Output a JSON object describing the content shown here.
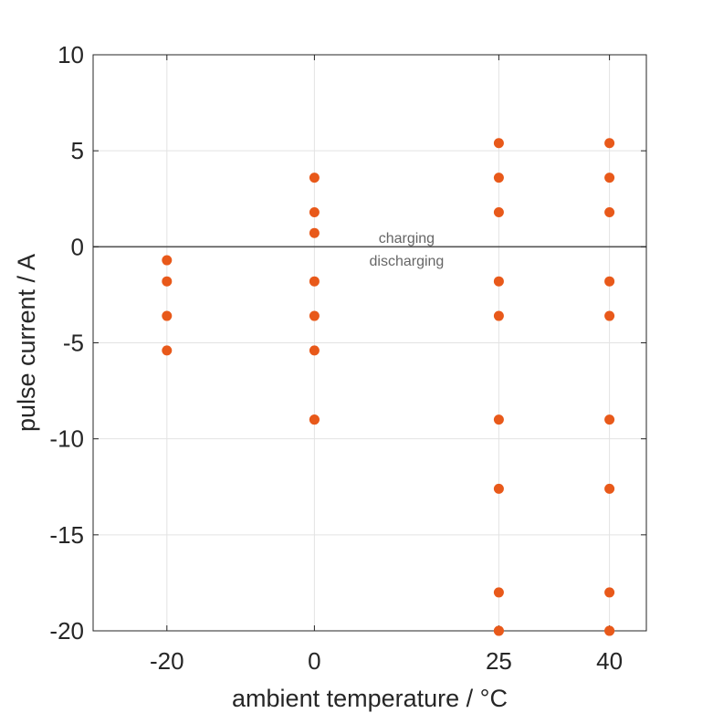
{
  "chart_data": {
    "type": "scatter",
    "title": "",
    "xlabel": "ambient temperature / °C",
    "ylabel": "pulse current / A",
    "xlim": [
      -30,
      45
    ],
    "ylim": [
      -20,
      10
    ],
    "xticks": [
      -20,
      0,
      25,
      40
    ],
    "yticks": [
      -20,
      -15,
      -10,
      -5,
      0,
      5,
      10
    ],
    "grid": true,
    "legend": "none",
    "zero_line": 0,
    "marker_color": "#E8591A",
    "annotations": [
      {
        "text": "charging",
        "x": 12.5,
        "y": 0.5
      },
      {
        "text": "discharging",
        "x": 12.5,
        "y": -0.7
      }
    ],
    "series": [
      {
        "x": [
          -20,
          -20,
          -20,
          -20,
          0,
          0,
          0,
          0,
          0,
          0,
          0,
          0,
          25,
          25,
          25,
          25,
          25,
          25,
          25,
          25,
          25,
          25,
          40,
          40,
          40,
          40,
          40,
          40,
          40,
          40,
          40,
          40
        ],
        "y": [
          -0.7,
          -1.8,
          -3.6,
          -5.4,
          3.6,
          1.8,
          0.72,
          -1.8,
          -3.6,
          -5.4,
          -9.0,
          -9.0,
          5.4,
          3.6,
          1.8,
          -1.8,
          -3.6,
          -9.0,
          -12.6,
          -18.0,
          -20.0,
          -20.0,
          5.4,
          3.6,
          1.8,
          -1.8,
          -3.6,
          -9.0,
          -12.6,
          -18.0,
          -20.0,
          -20.0
        ]
      }
    ]
  }
}
